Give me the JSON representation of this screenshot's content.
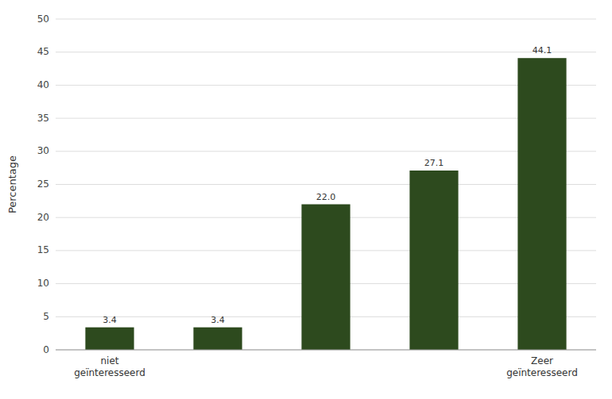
{
  "chart_data": {
    "type": "bar",
    "categories": [
      "niet\ngeïnteresseerd",
      null,
      null,
      null,
      "Zeer\ngeïnteresseerd"
    ],
    "values": [
      3.4,
      3.4,
      22.0,
      27.1,
      44.1
    ],
    "value_labels": [
      "3.4",
      "3.4",
      "22.0",
      "27.1",
      "44.1"
    ],
    "color": "#2d4a1e",
    "ylabel": "Percentage",
    "ylim": [
      0,
      50
    ],
    "yticks": [
      0,
      5,
      10,
      15,
      20,
      25,
      30,
      35,
      40,
      45,
      50
    ],
    "grid": true,
    "data_labels": true
  }
}
